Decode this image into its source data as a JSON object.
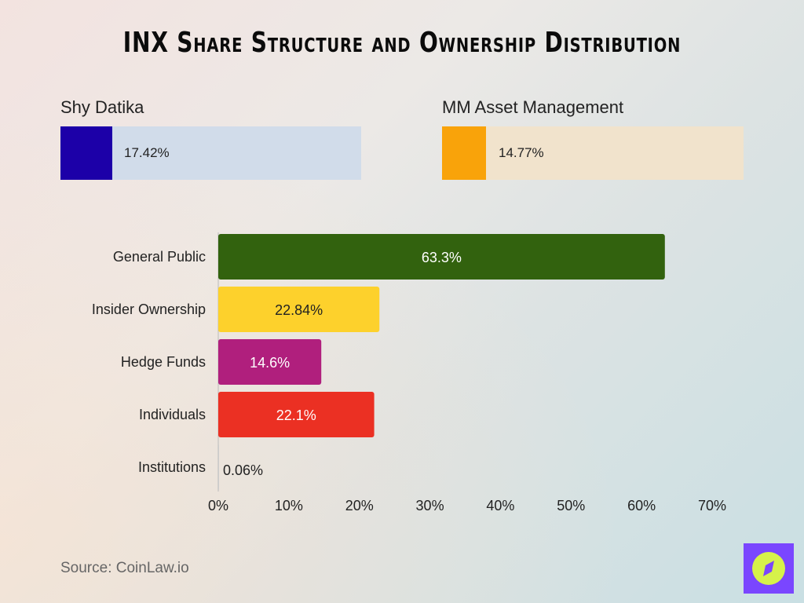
{
  "title": "INX Share Structure and Ownership Distribution",
  "highlights": [
    {
      "label": "Shy Datika",
      "value": 17.42,
      "value_label": "17.42%",
      "color": "#1c00a8",
      "track_color": "#d1dcea"
    },
    {
      "label": "MM Asset Management",
      "value": 14.77,
      "value_label": "14.77%",
      "color": "#f9a30a",
      "track_color": "#f1e3cc"
    }
  ],
  "chart_data": {
    "type": "bar",
    "orientation": "horizontal",
    "categories": [
      "General Public",
      "Insider Ownership",
      "Hedge Funds",
      "Individuals",
      "Institutions"
    ],
    "values": [
      63.3,
      22.84,
      14.6,
      22.1,
      0.06
    ],
    "data_labels": [
      "63.3%",
      "22.84%",
      "14.6%",
      "22.1%",
      "0.06%"
    ],
    "colors": [
      "#32620e",
      "#fdd12c",
      "#b01f7d",
      "#eb3023",
      "#cccccc"
    ],
    "label_colors": [
      "#ffffff",
      "#222222",
      "#ffffff",
      "#ffffff",
      "#222222"
    ],
    "xlim": [
      0,
      70
    ],
    "xticks": [
      "0%",
      "10%",
      "20%",
      "30%",
      "40%",
      "50%",
      "60%",
      "70%"
    ],
    "grid": false,
    "legend": "none"
  },
  "source": "Source: CoinLaw.io",
  "logo": {
    "icon": "compass-icon",
    "bg_color": "#7a46ff",
    "fg_color": "#d6f24a"
  }
}
